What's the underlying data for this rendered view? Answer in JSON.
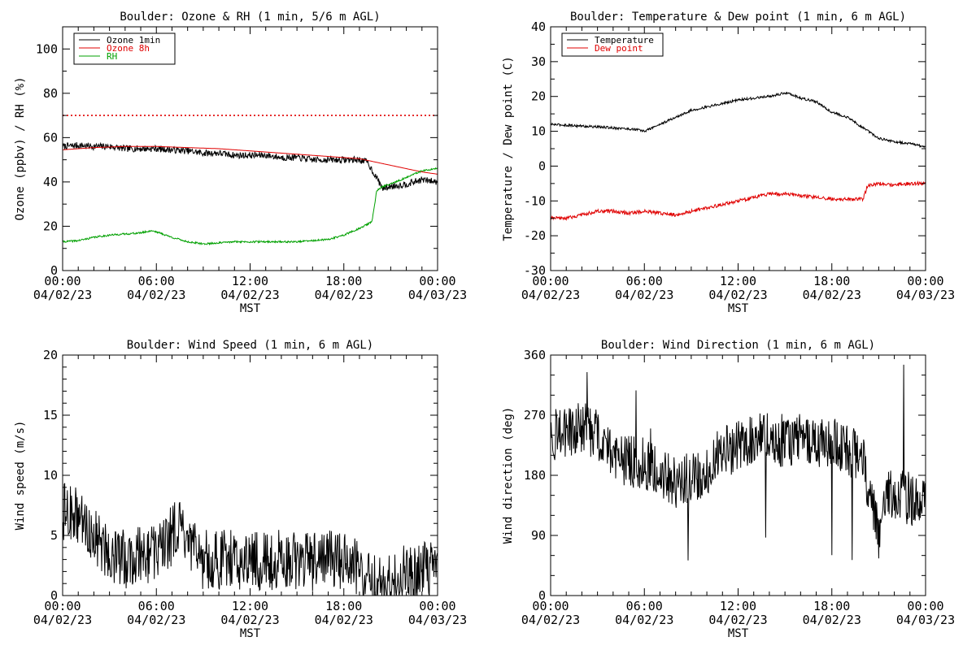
{
  "chart_data": [
    {
      "type": "line",
      "title": "Boulder: Ozone & RH (1 min, 5/6 m AGL)",
      "xlabel": "MST",
      "ylabel": "Ozone (ppbv) / RH (%)",
      "ylim": [
        0,
        110
      ],
      "xlim_hours": [
        0,
        24
      ],
      "grid": false,
      "legend_placement": "top-left",
      "x_ticks": [
        {
          "hour": 0,
          "time": "00:00",
          "date": "04/02/23"
        },
        {
          "hour": 6,
          "time": "06:00",
          "date": "04/02/23"
        },
        {
          "hour": 12,
          "time": "12:00",
          "date": "04/02/23"
        },
        {
          "hour": 18,
          "time": "18:00",
          "date": "04/02/23"
        },
        {
          "hour": 24,
          "time": "00:00",
          "date": "04/03/23"
        }
      ],
      "y_ticks": [
        0,
        20,
        40,
        60,
        80,
        100
      ],
      "y_minor_step": 10,
      "reference_lines": [
        {
          "y": 70,
          "color": "#e00000",
          "style": "dotted"
        }
      ],
      "series": [
        {
          "name": "Ozone 1min",
          "color": "#000000",
          "noise": 1.5,
          "spikes": 0,
          "points": [
            [
              0,
              56
            ],
            [
              1,
              56.5
            ],
            [
              2,
              56
            ],
            [
              3,
              56
            ],
            [
              4,
              55
            ],
            [
              5,
              55
            ],
            [
              6,
              55
            ],
            [
              7,
              54.5
            ],
            [
              8,
              54
            ],
            [
              9,
              53
            ],
            [
              10,
              53
            ],
            [
              11,
              52
            ],
            [
              12,
              52
            ],
            [
              13,
              52
            ],
            [
              14,
              51
            ],
            [
              15,
              51
            ],
            [
              16,
              50
            ],
            [
              17,
              50
            ],
            [
              18,
              50
            ],
            [
              19,
              50
            ],
            [
              19.5,
              49
            ],
            [
              20,
              43
            ],
            [
              20.5,
              37
            ],
            [
              21,
              38
            ],
            [
              22,
              39
            ],
            [
              23,
              41
            ],
            [
              24,
              40
            ]
          ]
        },
        {
          "name": "Ozone 8h",
          "color": "#e00000",
          "noise": 0,
          "spikes": 0,
          "points": [
            [
              0,
              54.5
            ],
            [
              2,
              55.5
            ],
            [
              4,
              56
            ],
            [
              6,
              56
            ],
            [
              8,
              55.5
            ],
            [
              10,
              55
            ],
            [
              12,
              54
            ],
            [
              14,
              53
            ],
            [
              16,
              52
            ],
            [
              18,
              51
            ],
            [
              19,
              50.5
            ],
            [
              20,
              49
            ],
            [
              21,
              47.5
            ],
            [
              22,
              46
            ],
            [
              23,
              44.5
            ],
            [
              24,
              43.5
            ]
          ]
        },
        {
          "name": "RH",
          "color": "#00a000",
          "noise": 0.4,
          "spikes": 0,
          "points": [
            [
              0,
              13
            ],
            [
              1,
              13.5
            ],
            [
              2,
              15
            ],
            [
              3,
              16
            ],
            [
              4,
              16.5
            ],
            [
              5,
              17
            ],
            [
              5.7,
              18
            ],
            [
              6,
              17.5
            ],
            [
              7,
              15
            ],
            [
              8,
              13
            ],
            [
              9,
              12
            ],
            [
              10,
              12.5
            ],
            [
              11,
              13
            ],
            [
              12,
              13
            ],
            [
              13,
              13
            ],
            [
              14,
              13
            ],
            [
              15,
              13
            ],
            [
              16,
              13.5
            ],
            [
              17,
              14
            ],
            [
              18,
              16
            ],
            [
              19,
              19
            ],
            [
              19.8,
              22
            ],
            [
              20.1,
              36
            ],
            [
              20.5,
              38
            ],
            [
              21,
              39
            ],
            [
              22,
              42
            ],
            [
              23,
              45
            ],
            [
              24,
              46
            ]
          ]
        }
      ]
    },
    {
      "type": "line",
      "title": "Boulder: Temperature & Dew point (1 min, 6 m AGL)",
      "xlabel": "MST",
      "ylabel": "Temperature / Dew point (C)",
      "ylim": [
        -30,
        40
      ],
      "xlim_hours": [
        0,
        24
      ],
      "grid": false,
      "legend_placement": "top-left",
      "x_ticks": [
        {
          "hour": 0,
          "time": "00:00",
          "date": "04/02/23"
        },
        {
          "hour": 6,
          "time": "06:00",
          "date": "04/02/23"
        },
        {
          "hour": 12,
          "time": "12:00",
          "date": "04/02/23"
        },
        {
          "hour": 18,
          "time": "18:00",
          "date": "04/02/23"
        },
        {
          "hour": 24,
          "time": "00:00",
          "date": "04/03/23"
        }
      ],
      "y_ticks": [
        -30,
        -20,
        -10,
        0,
        10,
        20,
        30,
        40
      ],
      "y_minor_step": 5,
      "reference_lines": [],
      "series": [
        {
          "name": "Temperature",
          "color": "#000000",
          "noise": 0.35,
          "spikes": 0,
          "points": [
            [
              0,
              12
            ],
            [
              2,
              11.5
            ],
            [
              4,
              11
            ],
            [
              5.5,
              10.5
            ],
            [
              6,
              10
            ],
            [
              6.5,
              11
            ],
            [
              7,
              12
            ],
            [
              8,
              14
            ],
            [
              9,
              16
            ],
            [
              10,
              17
            ],
            [
              11,
              18
            ],
            [
              12,
              19
            ],
            [
              13,
              19.5
            ],
            [
              14,
              20
            ],
            [
              15,
              21
            ],
            [
              15.5,
              20.5
            ],
            [
              16,
              19.5
            ],
            [
              17,
              18.5
            ],
            [
              18,
              15.5
            ],
            [
              19,
              14
            ],
            [
              20,
              11
            ],
            [
              21,
              8
            ],
            [
              22,
              7
            ],
            [
              23,
              6.5
            ],
            [
              24,
              5.5
            ]
          ]
        },
        {
          "name": "Dew point",
          "color": "#e00000",
          "noise": 0.5,
          "spikes": 0,
          "points": [
            [
              0,
              -15
            ],
            [
              1,
              -15
            ],
            [
              2,
              -14
            ],
            [
              3,
              -13
            ],
            [
              4,
              -13
            ],
            [
              5,
              -13.5
            ],
            [
              6,
              -13
            ],
            [
              7,
              -13.5
            ],
            [
              8,
              -14
            ],
            [
              9,
              -13
            ],
            [
              10,
              -12
            ],
            [
              11,
              -11
            ],
            [
              12,
              -10
            ],
            [
              13,
              -9
            ],
            [
              14,
              -8
            ],
            [
              15,
              -8
            ],
            [
              16,
              -8.5
            ],
            [
              17,
              -9
            ],
            [
              18,
              -9.5
            ],
            [
              19,
              -9.5
            ],
            [
              20,
              -9.5
            ],
            [
              20.3,
              -5.5
            ],
            [
              21,
              -5
            ],
            [
              22,
              -5.5
            ],
            [
              23,
              -5
            ],
            [
              24,
              -5
            ]
          ]
        }
      ]
    },
    {
      "type": "line",
      "title": "Boulder: Wind Speed (1 min, 6 m AGL)",
      "xlabel": "MST",
      "ylabel": "Wind speed (m/s)",
      "ylim": [
        0,
        20
      ],
      "xlim_hours": [
        0,
        24
      ],
      "grid": false,
      "legend_placement": "none",
      "x_ticks": [
        {
          "hour": 0,
          "time": "00:00",
          "date": "04/02/23"
        },
        {
          "hour": 6,
          "time": "06:00",
          "date": "04/02/23"
        },
        {
          "hour": 12,
          "time": "12:00",
          "date": "04/02/23"
        },
        {
          "hour": 18,
          "time": "18:00",
          "date": "04/02/23"
        },
        {
          "hour": 24,
          "time": "00:00",
          "date": "04/03/23"
        }
      ],
      "y_ticks": [
        0,
        5,
        10,
        15,
        20
      ],
      "y_minor_step": 1,
      "reference_lines": [],
      "series": [
        {
          "name": "",
          "color": "#000000",
          "noise": 2.5,
          "spikes": 0,
          "points": [
            [
              0,
              7
            ],
            [
              1,
              6.5
            ],
            [
              2,
              5
            ],
            [
              3,
              3.5
            ],
            [
              4,
              3
            ],
            [
              5,
              3.5
            ],
            [
              6,
              3.5
            ],
            [
              7,
              5
            ],
            [
              7.3,
              6
            ],
            [
              8,
              4
            ],
            [
              9,
              3
            ],
            [
              10,
              3
            ],
            [
              11,
              3
            ],
            [
              12,
              3
            ],
            [
              13,
              2.8
            ],
            [
              14,
              3
            ],
            [
              15,
              3
            ],
            [
              16,
              2.8
            ],
            [
              17,
              3
            ],
            [
              18,
              3
            ],
            [
              19,
              2
            ],
            [
              20,
              1
            ],
            [
              21,
              1
            ],
            [
              22,
              2
            ],
            [
              23,
              2
            ],
            [
              24,
              2
            ]
          ]
        }
      ]
    },
    {
      "type": "line",
      "title": "Boulder: Wind Direction (1 min, 6 m AGL)",
      "xlabel": "MST",
      "ylabel": "Wind direction (deg)",
      "ylim": [
        0,
        360
      ],
      "xlim_hours": [
        0,
        24
      ],
      "grid": false,
      "legend_placement": "none",
      "x_ticks": [
        {
          "hour": 0,
          "time": "00:00",
          "date": "04/02/23"
        },
        {
          "hour": 6,
          "time": "06:00",
          "date": "04/02/23"
        },
        {
          "hour": 12,
          "time": "12:00",
          "date": "04/02/23"
        },
        {
          "hour": 18,
          "time": "18:00",
          "date": "04/02/23"
        },
        {
          "hour": 24,
          "time": "00:00",
          "date": "04/03/23"
        }
      ],
      "y_ticks": [
        0,
        90,
        180,
        270,
        360
      ],
      "y_minor_step": 30,
      "reference_lines": [],
      "series": [
        {
          "name": "",
          "color": "#000000",
          "noise": 40,
          "spikes": 0.02,
          "points": [
            [
              0,
              240
            ],
            [
              1,
              245
            ],
            [
              2,
              250
            ],
            [
              3,
              240
            ],
            [
              4,
              215
            ],
            [
              5,
              200
            ],
            [
              6,
              200
            ],
            [
              7,
              185
            ],
            [
              8,
              170
            ],
            [
              9,
              175
            ],
            [
              10,
              190
            ],
            [
              11,
              215
            ],
            [
              12,
              225
            ],
            [
              13,
              235
            ],
            [
              14,
              240
            ],
            [
              15,
              230
            ],
            [
              16,
              235
            ],
            [
              17,
              225
            ],
            [
              18,
              230
            ],
            [
              19,
              220
            ],
            [
              20,
              205
            ],
            [
              21,
              90
            ],
            [
              21.5,
              160
            ],
            [
              22,
              150
            ],
            [
              23,
              145
            ],
            [
              24,
              135
            ]
          ]
        }
      ]
    }
  ]
}
